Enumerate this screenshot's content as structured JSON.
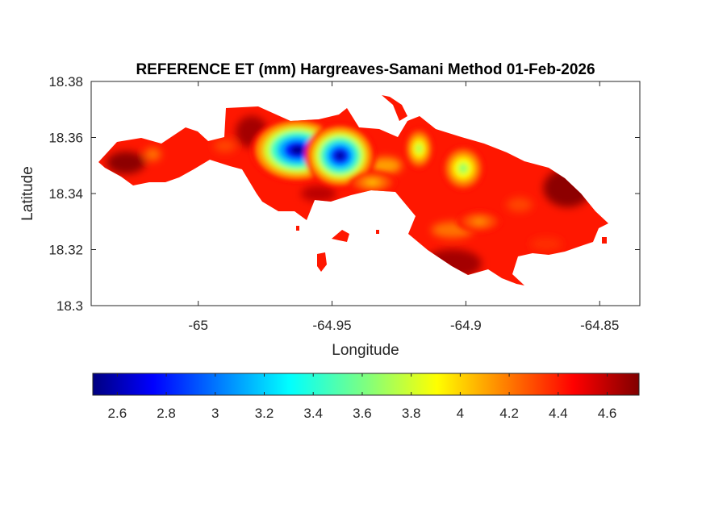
{
  "figure": {
    "title": "REFERENCE ET (mm) Hargreaves-Samani Method  01-Feb-2026"
  },
  "chart_data": {
    "type": "heatmap",
    "title": "REFERENCE ET (mm) Hargreaves-Samani Method  01-Feb-2026",
    "xlabel": "Longitude",
    "ylabel": "Latitude",
    "xlim": [
      -65.04,
      -64.835
    ],
    "ylim": [
      18.3,
      18.38
    ],
    "xticks": [
      -65,
      -64.95,
      -64.9,
      -64.85
    ],
    "xtick_labels": [
      "-65",
      "-64.95",
      "-64.9",
      "-64.85"
    ],
    "yticks": [
      18.3,
      18.32,
      18.34,
      18.36,
      18.38
    ],
    "ytick_labels": [
      "18.3",
      "18.32",
      "18.34",
      "18.36",
      "18.38"
    ],
    "colormap": "jet",
    "clim": [
      2.5,
      4.73
    ],
    "colorbar": {
      "location": "bottom",
      "ticks": [
        2.6,
        2.8,
        3,
        3.2,
        3.4,
        3.6,
        3.8,
        4,
        4.2,
        4.4,
        4.6
      ],
      "tick_labels": [
        "2.6",
        "2.8",
        "3",
        "3.2",
        "3.4",
        "3.6",
        "3.8",
        "4",
        "4.2",
        "4.4",
        "4.6"
      ]
    },
    "background_value": 4.4,
    "low_regions": [
      {
        "lon": -64.963,
        "lat": 18.3555,
        "value": 2.55
      },
      {
        "lon": -64.947,
        "lat": 18.3535,
        "value": 2.6
      },
      {
        "lon": -64.9175,
        "lat": 18.356,
        "value": 3.7
      },
      {
        "lon": -64.901,
        "lat": 18.349,
        "value": 3.65
      },
      {
        "lon": -64.935,
        "lat": 18.344,
        "value": 4.05
      },
      {
        "lon": -64.895,
        "lat": 18.33,
        "value": 4.15
      }
    ],
    "high_regions": [
      {
        "lon": -65.027,
        "lat": 18.351,
        "value": 4.7
      },
      {
        "lon": -64.98,
        "lat": 18.362,
        "value": 4.65
      },
      {
        "lon": -64.862,
        "lat": 18.342,
        "value": 4.7
      },
      {
        "lon": -64.905,
        "lat": 18.315,
        "value": 4.65
      },
      {
        "lon": -64.955,
        "lat": 18.34,
        "value": 4.6
      }
    ],
    "grid": false
  }
}
